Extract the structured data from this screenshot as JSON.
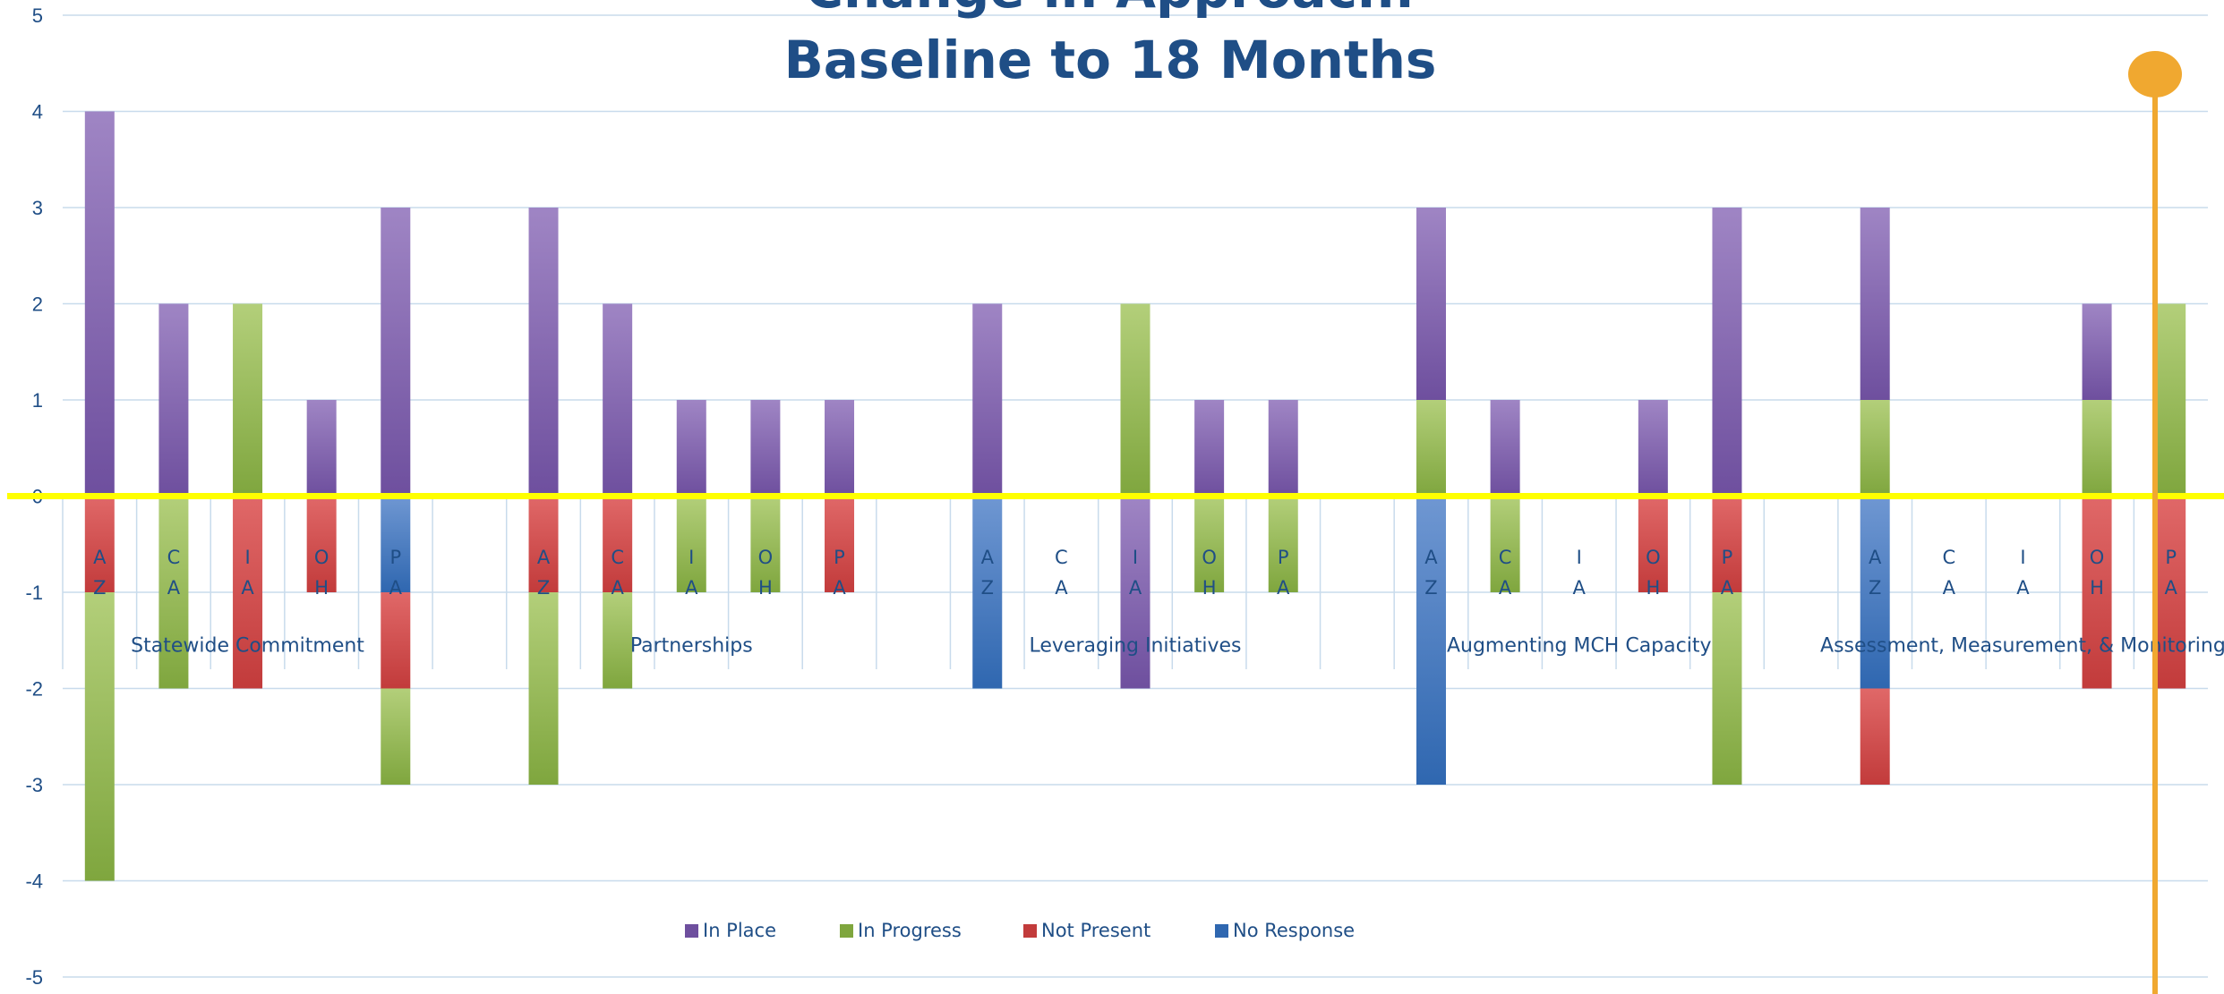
{
  "chart_data": {
    "type": "bar",
    "stacked": true,
    "title_lines": [
      "Change in Approach:",
      "Baseline to 18 Months"
    ],
    "xlabel": "",
    "ylabel": "",
    "ylim": [
      -5,
      5
    ],
    "yticks": [
      5,
      4,
      3,
      2,
      1,
      0,
      -1,
      -2,
      -3,
      -4,
      -5
    ],
    "grid": true,
    "legend_placement": "bottom",
    "colors": {
      "In Place": [
        "#9f85c4",
        "#6e4f9e"
      ],
      "In Progress": [
        "#b3cf7a",
        "#7fa63e"
      ],
      "Not Present": [
        "#e06868",
        "#c23b3b"
      ],
      "No Response": [
        "#6f97d2",
        "#2f67b0"
      ],
      "axis_text": "#1f4e86",
      "gridline": "#c8dbec",
      "zero_line": "#ffff00",
      "marker": "#f0a830"
    },
    "legend": [
      {
        "name": "In Place",
        "key": "In Place"
      },
      {
        "name": "In Progress",
        "key": "In Progress"
      },
      {
        "name": "Not Present",
        "key": "Not Present"
      },
      {
        "name": "No Response",
        "key": "No Response"
      }
    ],
    "groups": [
      {
        "label": "Statewide Commitment",
        "states": [
          {
            "label": [
              "A",
              "Z"
            ],
            "segments": [
              {
                "s": "In Place",
                "v": 4
              },
              {
                "s": "Not Present",
                "v": -1
              },
              {
                "s": "In Progress",
                "v": -3
              }
            ]
          },
          {
            "label": [
              "C",
              "A"
            ],
            "segments": [
              {
                "s": "In Place",
                "v": 2
              },
              {
                "s": "In Progress",
                "v": -2
              }
            ]
          },
          {
            "label": [
              "I",
              "A"
            ],
            "segments": [
              {
                "s": "In Progress",
                "v": 2
              },
              {
                "s": "Not Present",
                "v": -2
              }
            ]
          },
          {
            "label": [
              "O",
              "H"
            ],
            "segments": [
              {
                "s": "In Place",
                "v": 1
              },
              {
                "s": "Not Present",
                "v": -1
              }
            ]
          },
          {
            "label": [
              "P",
              "A"
            ],
            "segments": [
              {
                "s": "In Place",
                "v": 3
              },
              {
                "s": "No Response",
                "v": -1
              },
              {
                "s": "Not Present",
                "v": -1
              },
              {
                "s": "In Progress",
                "v": -1
              }
            ]
          }
        ]
      },
      {
        "label": "Partnerships",
        "states": [
          {
            "label": [
              "A",
              "Z"
            ],
            "segments": [
              {
                "s": "In Place",
                "v": 3
              },
              {
                "s": "Not Present",
                "v": -1
              },
              {
                "s": "In Progress",
                "v": -2
              }
            ]
          },
          {
            "label": [
              "C",
              "A"
            ],
            "segments": [
              {
                "s": "In Place",
                "v": 2
              },
              {
                "s": "Not Present",
                "v": -1
              },
              {
                "s": "In Progress",
                "v": -1
              }
            ]
          },
          {
            "label": [
              "I",
              "A"
            ],
            "segments": [
              {
                "s": "In Place",
                "v": 1
              },
              {
                "s": "In Progress",
                "v": -1
              }
            ]
          },
          {
            "label": [
              "O",
              "H"
            ],
            "segments": [
              {
                "s": "In Place",
                "v": 1
              },
              {
                "s": "In Progress",
                "v": -1
              }
            ]
          },
          {
            "label": [
              "P",
              "A"
            ],
            "segments": [
              {
                "s": "In Place",
                "v": 1
              },
              {
                "s": "Not Present",
                "v": -1
              }
            ]
          }
        ]
      },
      {
        "label": "Leveraging Initiatives",
        "states": [
          {
            "label": [
              "A",
              "Z"
            ],
            "segments": [
              {
                "s": "In Place",
                "v": 2
              },
              {
                "s": "No Response",
                "v": -2
              }
            ]
          },
          {
            "label": [
              "C",
              "A"
            ],
            "segments": []
          },
          {
            "label": [
              "I",
              "A"
            ],
            "segments": [
              {
                "s": "In Progress",
                "v": 2
              },
              {
                "s": "In Place",
                "v": -2
              }
            ]
          },
          {
            "label": [
              "O",
              "H"
            ],
            "segments": [
              {
                "s": "In Place",
                "v": 1
              },
              {
                "s": "In Progress",
                "v": -1
              }
            ]
          },
          {
            "label": [
              "P",
              "A"
            ],
            "segments": [
              {
                "s": "In Place",
                "v": 1
              },
              {
                "s": "In Progress",
                "v": -1
              }
            ]
          }
        ]
      },
      {
        "label": "Augmenting MCH Capacity",
        "states": [
          {
            "label": [
              "A",
              "Z"
            ],
            "segments": [
              {
                "s": "In Progress",
                "v": 1
              },
              {
                "s": "In Place",
                "v": 2
              },
              {
                "s": "No Response",
                "v": -3
              }
            ]
          },
          {
            "label": [
              "C",
              "A"
            ],
            "segments": [
              {
                "s": "In Place",
                "v": 1
              },
              {
                "s": "In Progress",
                "v": -1
              }
            ]
          },
          {
            "label": [
              "I",
              "A"
            ],
            "segments": []
          },
          {
            "label": [
              "O",
              "H"
            ],
            "segments": [
              {
                "s": "In Place",
                "v": 1
              },
              {
                "s": "Not Present",
                "v": -1
              }
            ]
          },
          {
            "label": [
              "P",
              "A"
            ],
            "segments": [
              {
                "s": "In Place",
                "v": 3
              },
              {
                "s": "Not Present",
                "v": -1
              },
              {
                "s": "In Progress",
                "v": -2
              }
            ]
          }
        ]
      },
      {
        "label": "Assessment, Measurement, & Monitoring",
        "states": [
          {
            "label": [
              "A",
              "Z"
            ],
            "segments": [
              {
                "s": "In Progress",
                "v": 1
              },
              {
                "s": "In Place",
                "v": 2
              },
              {
                "s": "No Response",
                "v": -2
              },
              {
                "s": "Not Present",
                "v": -1
              }
            ]
          },
          {
            "label": [
              "C",
              "A"
            ],
            "segments": []
          },
          {
            "label": [
              "I",
              "A"
            ],
            "segments": []
          },
          {
            "label": [
              "O",
              "H"
            ],
            "segments": [
              {
                "s": "In Progress",
                "v": 1
              },
              {
                "s": "In Place",
                "v": 1
              },
              {
                "s": "Not Present",
                "v": -2
              }
            ]
          },
          {
            "label": [
              "P",
              "A"
            ],
            "segments": [
              {
                "s": "In Progress",
                "v": 2
              },
              {
                "s": "Not Present",
                "v": -2
              }
            ]
          }
        ]
      }
    ]
  }
}
